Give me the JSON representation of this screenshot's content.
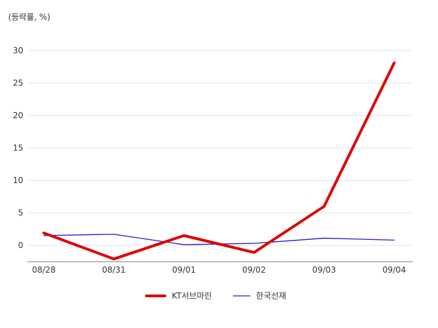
{
  "chart_data": {
    "type": "line",
    "title": "",
    "ylabel": "(등락률, %)",
    "xlabel": "",
    "categories": [
      "08/28",
      "08/31",
      "09/01",
      "09/02",
      "09/03",
      "09/04"
    ],
    "ylim": [
      -2.5,
      30
    ],
    "yticks": [
      0,
      5,
      10,
      15,
      20,
      25,
      30
    ],
    "grid": true,
    "legend_position": "bottom",
    "series": [
      {
        "name": "KT서브마린",
        "color": "#e00000",
        "values": [
          1.9,
          -2.1,
          1.5,
          -1.1,
          6.0,
          28.1
        ]
      },
      {
        "name": "한국선재",
        "color": "#1a1ad0",
        "values": [
          1.5,
          1.7,
          0.1,
          0.3,
          1.1,
          0.8
        ]
      }
    ]
  }
}
